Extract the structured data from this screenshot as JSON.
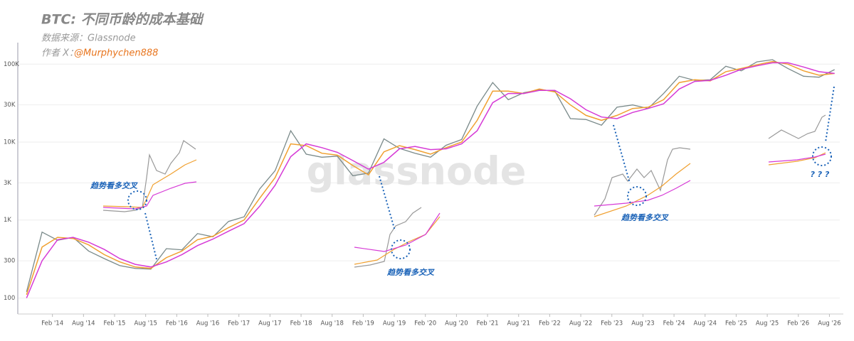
{
  "chart_data": {
    "type": "line",
    "title": "BTC: 不同币龄的成本基础",
    "subtitle": "数据来源：Glassnode",
    "author_prefix": "作者 X：",
    "author": "@Murphychen888",
    "watermark": "glassnode",
    "annotations": [
      {
        "text": "趋势看多交叉"
      },
      {
        "text": "趋势看多交叉"
      },
      {
        "text": "趋势看多交叉"
      },
      {
        "text": "? ? ?"
      }
    ],
    "log_scale": true,
    "grid": true,
    "x": [
      "2013-09",
      "2013-12",
      "2014-03",
      "2014-06",
      "2014-09",
      "2014-12",
      "2015-03",
      "2015-06",
      "2015-09",
      "2015-12",
      "2016-03",
      "2016-06",
      "2016-09",
      "2016-12",
      "2017-03",
      "2017-06",
      "2017-09",
      "2017-12",
      "2018-03",
      "2018-06",
      "2018-09",
      "2018-12",
      "2019-03",
      "2019-06",
      "2019-09",
      "2019-12",
      "2020-03",
      "2020-06",
      "2020-09",
      "2020-12",
      "2021-03",
      "2021-06",
      "2021-09",
      "2021-12",
      "2022-03",
      "2022-06",
      "2022-09",
      "2022-12",
      "2023-03",
      "2023-06",
      "2023-09",
      "2023-12",
      "2024-03",
      "2024-06",
      "2024-09",
      "2024-12",
      "2025-03",
      "2025-06",
      "2025-09",
      "2025-12",
      "2026-03",
      "2026-06",
      "2026-09"
    ],
    "series": [
      {
        "color": "#7a8a8a",
        "values": [
          120,
          700,
          550,
          600,
          400,
          320,
          260,
          240,
          235,
          430,
          415,
          670,
          610,
          960,
          1100,
          2500,
          4300,
          14000,
          7000,
          6400,
          6600,
          3700,
          4000,
          11000,
          8300,
          7200,
          6400,
          9100,
          10800,
          29000,
          58000,
          35000,
          43000,
          47000,
          45000,
          20000,
          19500,
          16500,
          28000,
          30000,
          27000,
          42000,
          70000,
          62000,
          63000,
          94000,
          82000,
          107000,
          114000,
          88000,
          70000,
          68000,
          85000
        ]
      },
      {
        "color": "#f0a030",
        "values": [
          110,
          450,
          600,
          580,
          480,
          360,
          290,
          250,
          240,
          330,
          400,
          560,
          620,
          800,
          1000,
          1900,
          3500,
          9500,
          9000,
          7200,
          6800,
          5000,
          3800,
          7500,
          9000,
          8000,
          7000,
          8500,
          10000,
          19000,
          45000,
          45000,
          42000,
          48000,
          44000,
          30000,
          22000,
          19000,
          22000,
          27000,
          28000,
          35000,
          58000,
          63000,
          61000,
          80000,
          88000,
          98000,
          108000,
          100000,
          82000,
          72000,
          76000
        ]
      },
      {
        "color": "#d63ad6",
        "values": [
          100,
          300,
          560,
          600,
          520,
          420,
          320,
          270,
          250,
          290,
          360,
          470,
          570,
          720,
          900,
          1500,
          2800,
          6500,
          9500,
          8500,
          7400,
          5800,
          4500,
          5500,
          8200,
          8800,
          8000,
          8200,
          9500,
          14000,
          32000,
          42000,
          42000,
          46000,
          46000,
          36000,
          26000,
          21000,
          20000,
          24000,
          27000,
          31000,
          48000,
          60000,
          62000,
          72000,
          86000,
          95000,
          104000,
          104000,
          92000,
          80000,
          76000
        ]
      }
    ],
    "xlim": [
      "2013-08",
      "2026-10"
    ],
    "xticks": [
      {
        "value": "2014-02",
        "label": "Feb '14"
      },
      {
        "value": "2014-08",
        "label": "Aug '14"
      },
      {
        "value": "2015-02",
        "label": "Feb '15"
      },
      {
        "value": "2015-08",
        "label": "Aug '15"
      },
      {
        "value": "2016-02",
        "label": "Feb '16"
      },
      {
        "value": "2016-08",
        "label": "Aug '16"
      },
      {
        "value": "2017-02",
        "label": "Feb '17"
      },
      {
        "value": "2017-08",
        "label": "Aug '17"
      },
      {
        "value": "2018-02",
        "label": "Feb '18"
      },
      {
        "value": "2018-08",
        "label": "Aug '18"
      },
      {
        "value": "2019-02",
        "label": "Feb '19"
      },
      {
        "value": "2019-08",
        "label": "Aug '19"
      },
      {
        "value": "2020-02",
        "label": "Feb '20"
      },
      {
        "value": "2020-08",
        "label": "Aug '20"
      },
      {
        "value": "2021-02",
        "label": "Feb '21"
      },
      {
        "value": "2021-08",
        "label": "Aug '21"
      },
      {
        "value": "2022-02",
        "label": "Feb '22"
      },
      {
        "value": "2022-08",
        "label": "Aug '22"
      },
      {
        "value": "2023-02",
        "label": "Feb '23"
      },
      {
        "value": "2023-08",
        "label": "Aug '23"
      },
      {
        "value": "2024-02",
        "label": "Feb '24"
      },
      {
        "value": "2024-08",
        "label": "Aug '24"
      },
      {
        "value": "2025-02",
        "label": "Feb '25"
      },
      {
        "value": "2025-08",
        "label": "Aug '25"
      },
      {
        "value": "2026-02",
        "label": "Feb '26"
      },
      {
        "value": "2026-08",
        "label": "Aug '26"
      }
    ],
    "ylim": [
      65,
      170000
    ],
    "yticks": [
      100,
      300,
      {
        "value": 1000,
        "label": "1K"
      },
      {
        "value": 3000,
        "label": "3K"
      },
      {
        "value": 10000,
        "label": "10K"
      },
      {
        "value": 30000,
        "label": "30K"
      },
      {
        "value": 100000,
        "label": "100K"
      }
    ]
  }
}
